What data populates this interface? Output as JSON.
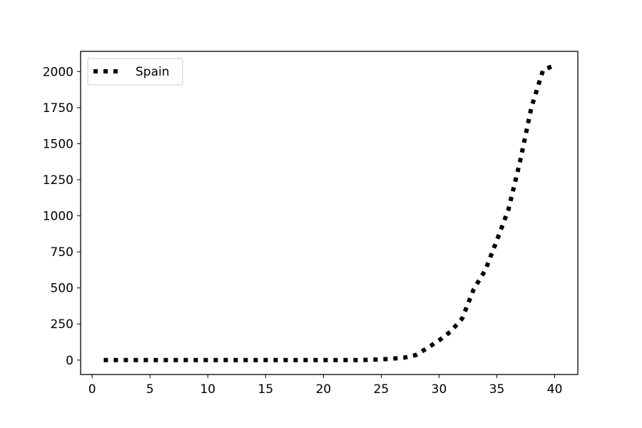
{
  "chart_data": {
    "type": "line",
    "title": "",
    "xlabel": "",
    "ylabel": "",
    "xlim": [
      -1,
      42
    ],
    "ylim": [
      -100,
      2140
    ],
    "x_ticks": [
      0,
      5,
      10,
      15,
      20,
      25,
      30,
      35,
      40
    ],
    "y_ticks": [
      0,
      250,
      500,
      750,
      1000,
      1250,
      1500,
      1750,
      2000
    ],
    "grid": false,
    "legend_position": "top-left",
    "series": [
      {
        "name": "Spain",
        "color": "#000000",
        "line_style": "dotted",
        "x": [
          1,
          2,
          3,
          4,
          5,
          6,
          7,
          8,
          9,
          10,
          11,
          12,
          13,
          14,
          15,
          16,
          17,
          18,
          19,
          20,
          21,
          22,
          23,
          24,
          25,
          26,
          27,
          28,
          29,
          30,
          31,
          32,
          33,
          34,
          35,
          36,
          37,
          38,
          39,
          40
        ],
        "y": [
          0,
          0,
          0,
          0,
          0,
          0,
          0,
          0,
          0,
          0,
          0,
          0,
          0,
          0,
          0,
          0,
          0,
          0,
          0,
          0,
          0,
          0,
          0,
          2,
          5,
          10,
          17,
          35,
          84,
          136,
          198,
          288,
          492,
          623,
          830,
          1043,
          1375,
          1756,
          2011,
          2043
        ]
      }
    ]
  }
}
